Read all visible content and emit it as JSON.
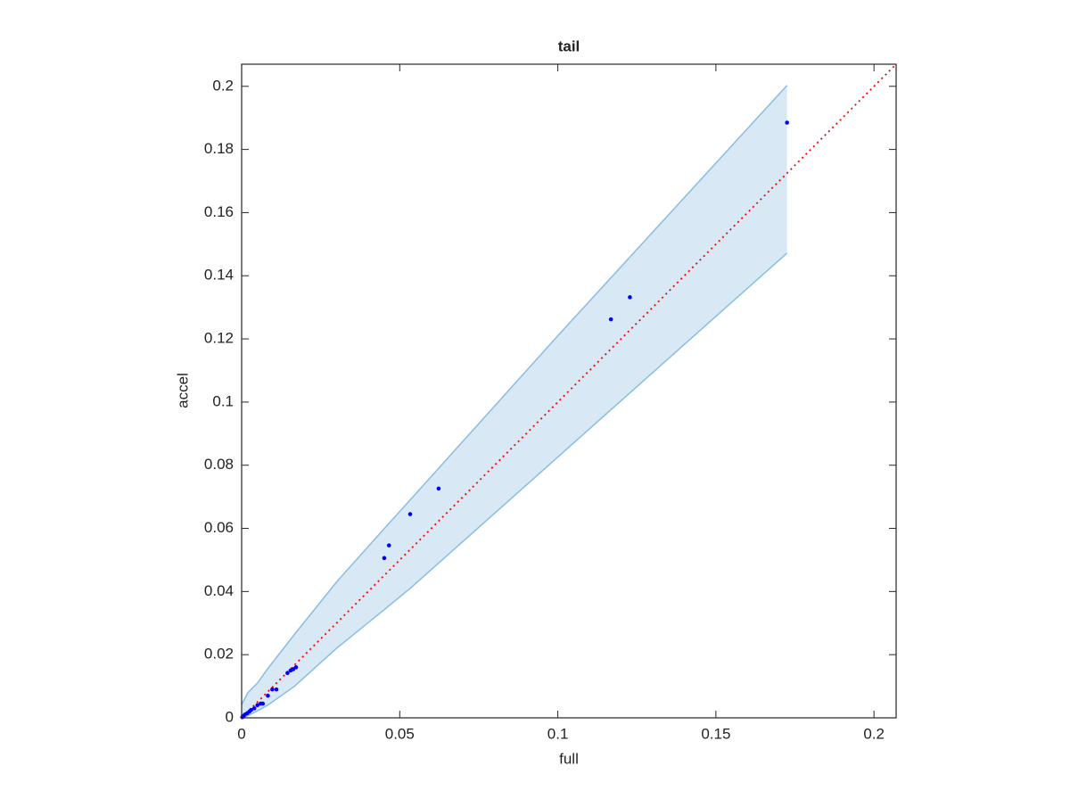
{
  "chart_data": {
    "type": "scatter",
    "title": "tail",
    "x_label": "full",
    "y_label": "accel",
    "xlim": [
      0,
      0.207
    ],
    "ylim": [
      0,
      0.207
    ],
    "xticks": [
      0,
      0.05,
      0.1,
      0.15,
      0.2
    ],
    "yticks": [
      0,
      0.02,
      0.04,
      0.06,
      0.08,
      0.1,
      0.12,
      0.14,
      0.16,
      0.18,
      0.2
    ],
    "points": {
      "color": "#0000ff",
      "x": [
        0.1725,
        0.1228,
        0.1168,
        0.0623,
        0.0533,
        0.0466,
        0.0451,
        0.0172,
        0.0163,
        0.0155,
        0.0145,
        0.011,
        0.0097,
        0.0083,
        0.0067,
        0.006,
        0.005,
        0.004,
        0.003,
        0.0025,
        0.0018,
        0.001,
        0.0005,
        0.0002
      ],
      "y": [
        0.1885,
        0.1332,
        0.1262,
        0.0726,
        0.0645,
        0.0546,
        0.0506,
        0.016,
        0.0154,
        0.015,
        0.0142,
        0.009,
        0.009,
        0.007,
        0.0045,
        0.0045,
        0.004,
        0.003,
        0.0025,
        0.002,
        0.0015,
        0.001,
        0.0005,
        0.0002
      ]
    },
    "band": {
      "color": "#89bde0",
      "fill": "#d9e8f5",
      "x": [
        0,
        0.002,
        0.005,
        0.0082,
        0.0166,
        0.03,
        0.0448,
        0.0533,
        0.1,
        0.1725
      ],
      "upper": [
        0.0042,
        0.008,
        0.011,
        0.0155,
        0.0263,
        0.043,
        0.0596,
        0.069,
        0.121,
        0.2003
      ],
      "lower": [
        0,
        0.0007,
        0.0022,
        0.004,
        0.0099,
        0.022,
        0.034,
        0.041,
        0.0826,
        0.1472
      ]
    },
    "diagonal": {
      "color": "#ff0000",
      "x": [
        0,
        0.207
      ],
      "y": [
        0,
        0.207
      ]
    }
  }
}
